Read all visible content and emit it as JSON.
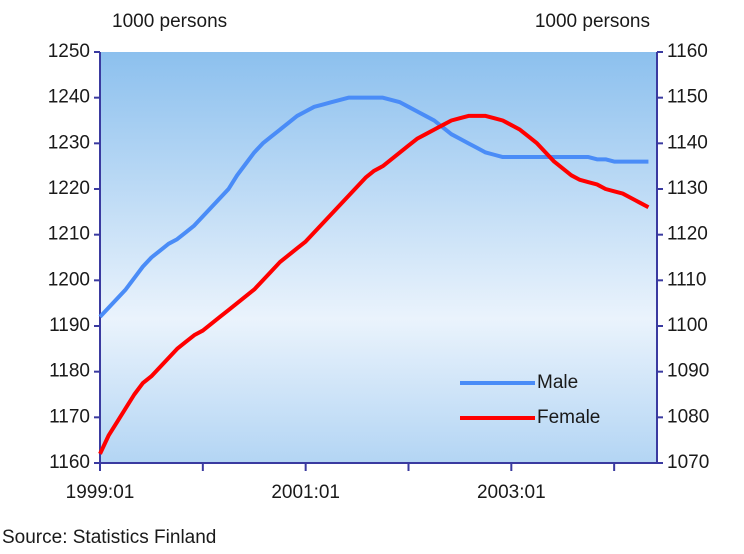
{
  "chart_data": {
    "type": "line",
    "y_axis_label": "1000 persons",
    "y2_axis_label": "1000 persons",
    "source": "Source: Statistics Finland",
    "x": [
      0,
      1,
      2,
      3,
      4,
      5,
      6,
      7,
      8,
      9,
      10,
      11,
      12,
      13,
      14,
      15,
      16,
      17,
      18,
      19,
      20,
      21,
      22,
      23,
      24,
      25,
      26,
      27,
      28,
      29,
      30,
      31,
      32,
      33,
      34,
      35,
      36,
      37,
      38,
      39,
      40,
      41,
      42,
      43,
      44,
      45,
      46,
      47,
      48,
      49,
      50,
      51,
      52,
      53,
      54,
      55,
      56,
      57,
      58,
      59,
      60,
      61,
      62,
      63,
      64
    ],
    "xlim": [
      0,
      65
    ],
    "xticks": [
      {
        "value": 0,
        "label": "1999:01"
      },
      {
        "value": 24,
        "label": "2001:01"
      },
      {
        "value": 48,
        "label": "2003:01"
      }
    ],
    "minor_xticks": [
      12,
      36,
      60
    ],
    "ylim": [
      1160,
      1250
    ],
    "yticks": [
      1160,
      1170,
      1180,
      1190,
      1200,
      1210,
      1220,
      1230,
      1240,
      1250
    ],
    "y2lim": [
      1070,
      1160
    ],
    "y2ticks": [
      1070,
      1080,
      1090,
      1100,
      1110,
      1120,
      1130,
      1140,
      1150,
      1160
    ],
    "legend": "lower right",
    "series": [
      {
        "name": "Male",
        "color": "#4a8cf7",
        "axis": "y",
        "values": [
          1192,
          1194,
          1196,
          1198,
          1200.5,
          1203,
          1205,
          1206.5,
          1208,
          1209,
          1210.5,
          1212,
          1214,
          1216,
          1218,
          1220,
          1223,
          1225.5,
          1228,
          1230,
          1231.5,
          1233,
          1234.5,
          1236,
          1237,
          1238,
          1238.5,
          1239,
          1239.5,
          1240,
          1240,
          1240,
          1240,
          1240,
          1239.5,
          1239,
          1238,
          1237,
          1236,
          1235,
          1233.5,
          1232,
          1231,
          1230,
          1229,
          1228,
          1227.5,
          1227,
          1227,
          1227,
          1227,
          1227,
          1227,
          1227,
          1227,
          1227,
          1227,
          1227,
          1226.5,
          1226.5,
          1226,
          1226,
          1226,
          1226,
          1226
        ]
      },
      {
        "name": "Female",
        "color": "#ff0000",
        "axis": "y2",
        "values": [
          1072,
          1076,
          1079,
          1082,
          1085,
          1087.5,
          1089,
          1091,
          1093,
          1095,
          1096.5,
          1098,
          1099,
          1100.5,
          1102,
          1103.5,
          1105,
          1106.5,
          1108,
          1110,
          1112,
          1114,
          1115.5,
          1117,
          1118.5,
          1120.5,
          1122.5,
          1124.5,
          1126.5,
          1128.5,
          1130.5,
          1132.5,
          1134,
          1135,
          1136.5,
          1138,
          1139.5,
          1141,
          1142,
          1143,
          1144,
          1145,
          1145.5,
          1146,
          1146,
          1146,
          1145.5,
          1145,
          1144,
          1143,
          1141.5,
          1140,
          1138,
          1136,
          1134.5,
          1133,
          1132,
          1131.5,
          1131,
          1130,
          1129.5,
          1129,
          1128,
          1127,
          1126
        ]
      }
    ]
  }
}
